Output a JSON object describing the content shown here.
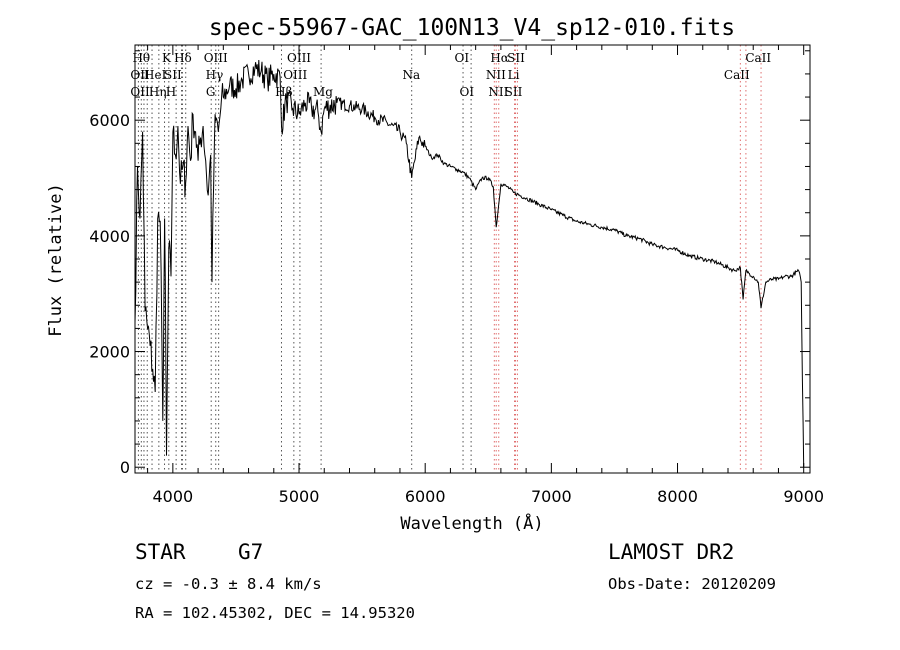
{
  "chart_data": {
    "type": "line",
    "title": "spec-55967-GAC_100N13_V4_sp12-010.fits",
    "xlabel": "Wavelength (Å)",
    "ylabel": "Flux (relative)",
    "xlim": [
      3700,
      9050
    ],
    "ylim": [
      -100,
      7300
    ],
    "x_ticks": [
      4000,
      5000,
      6000,
      7000,
      8000,
      9000
    ],
    "y_ticks": [
      0,
      2000,
      4000,
      6000
    ],
    "grid": false,
    "series": [
      {
        "x": [
          3700,
          3720,
          3740,
          3760,
          3780,
          3800,
          3820,
          3840,
          3860,
          3880,
          3900,
          3920,
          3935,
          3950,
          3968,
          3985,
          4000,
          4020,
          4040,
          4060,
          4080,
          4101,
          4120,
          4140,
          4160,
          4180,
          4200,
          4220,
          4240,
          4260,
          4280,
          4300,
          4310,
          4330,
          4340,
          4360,
          4380,
          4400,
          4450,
          4500,
          4550,
          4600,
          4650,
          4700,
          4750,
          4800,
          4850,
          4861,
          4900,
          4950,
          5000,
          5050,
          5100,
          5150,
          5175,
          5200,
          5300,
          5400,
          5500,
          5600,
          5700,
          5800,
          5850,
          5893,
          5950,
          6000,
          6050,
          6100,
          6150,
          6200,
          6250,
          6300,
          6350,
          6400,
          6450,
          6500,
          6540,
          6563,
          6600,
          6650,
          6700,
          6800,
          6900,
          7000,
          7100,
          7200,
          7300,
          7400,
          7500,
          7600,
          7700,
          7800,
          7900,
          8000,
          8100,
          8200,
          8300,
          8400,
          8450,
          8498,
          8520,
          8542,
          8570,
          8600,
          8640,
          8662,
          8700,
          8750,
          8800,
          8850,
          8900,
          8960,
          8980,
          8990,
          9000
        ],
        "y": [
          2500,
          5200,
          4300,
          5800,
          2700,
          2400,
          2100,
          1700,
          1300,
          4300,
          4250,
          800,
          4300,
          200,
          3800,
          3300,
          5800,
          5400,
          5900,
          4900,
          5200,
          4900,
          5900,
          5300,
          6100,
          5800,
          5300,
          5700,
          5900,
          5300,
          4700,
          5400,
          3200,
          5700,
          6000,
          5800,
          6200,
          6400,
          6600,
          6550,
          6700,
          6800,
          6900,
          6850,
          6700,
          6800,
          6750,
          5900,
          6350,
          6200,
          6100,
          6300,
          6200,
          6150,
          5800,
          6200,
          6300,
          6250,
          6200,
          6050,
          5950,
          5800,
          5600,
          5000,
          5700,
          5550,
          5350,
          5400,
          5250,
          5200,
          5150,
          5100,
          5000,
          4800,
          5000,
          5000,
          4850,
          4150,
          4900,
          4850,
          4750,
          4650,
          4550,
          4450,
          4350,
          4250,
          4200,
          4150,
          4100,
          4000,
          3950,
          3850,
          3800,
          3750,
          3650,
          3600,
          3550,
          3450,
          3400,
          3450,
          2900,
          3400,
          3350,
          3300,
          3200,
          2750,
          3200,
          3250,
          3250,
          3300,
          3300,
          3400,
          3200,
          1500,
          0
        ]
      }
    ],
    "lines": {
      "labels_row1": [
        "Hθ",
        "K",
        "Hδ",
        "OIII",
        "OIII",
        "OI",
        "Hα",
        "SII",
        "CaII"
      ],
      "labels_row2": [
        "OII",
        "HeI",
        "SII",
        "Hγ",
        "OIII",
        "Na",
        "NII",
        "Li",
        "CaII"
      ],
      "labels_row3": [
        "OII",
        "Hη",
        "H",
        "G",
        "Hβ",
        "Mg",
        "OI",
        "NII",
        "SII"
      ],
      "wavelengths": [
        3727,
        3750,
        3771,
        3797,
        3835,
        3889,
        3934,
        3968,
        4026,
        4069,
        4076,
        4102,
        4304,
        4340,
        4363,
        4861,
        4959,
        5007,
        5175,
        5893,
        6300,
        6364,
        6548,
        6563,
        6583,
        6708,
        6716,
        6731,
        8498,
        8542,
        8662
      ]
    }
  },
  "info": {
    "object": "STAR",
    "subclass": "G7",
    "survey": "LAMOST DR2",
    "redshift": "cz = -0.3 ± 8.4 km/s",
    "obs_date": "Obs-Date: 20120209",
    "coords": "RA = 102.45302, DEC =  14.95320"
  }
}
